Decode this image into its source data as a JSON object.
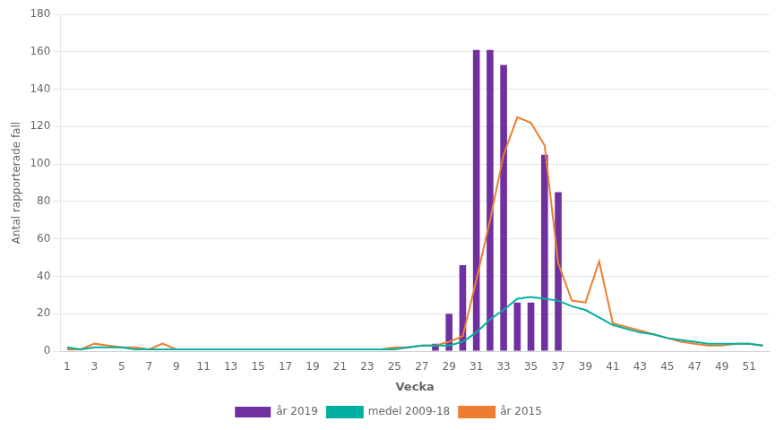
{
  "chart_data": {
    "type": "bar",
    "xlabel": "Vecka",
    "ylabel": "Antal rapporterade fall",
    "categories": [
      "1",
      null,
      "3",
      null,
      "5",
      null,
      "7",
      null,
      "9",
      null,
      "11",
      null,
      "13",
      null,
      "15",
      null,
      "17",
      null,
      "19",
      null,
      "21",
      null,
      "23",
      null,
      "25",
      null,
      "27",
      null,
      "29",
      null,
      "31",
      null,
      "33",
      null,
      "35",
      null,
      "37",
      null,
      "39",
      null,
      "41",
      null,
      "43",
      null,
      "45",
      null,
      "47",
      null,
      "49",
      null,
      "51",
      null
    ],
    "series": [
      {
        "name": "år 2019",
        "type": "bar",
        "color": "#7030a0",
        "values": [
          null,
          null,
          null,
          null,
          null,
          null,
          null,
          null,
          null,
          null,
          null,
          null,
          null,
          null,
          null,
          null,
          null,
          null,
          null,
          null,
          null,
          null,
          null,
          null,
          null,
          null,
          null,
          4,
          20,
          46,
          161,
          161,
          153,
          26,
          26,
          105,
          85,
          null,
          null,
          null,
          null,
          null,
          null,
          null,
          null,
          null,
          null,
          null,
          null,
          null,
          null,
          null
        ]
      },
      {
        "name": "medel 2009-18",
        "type": "line",
        "color": "#00b0a0",
        "values": [
          2,
          1,
          2,
          2,
          2,
          1,
          1,
          1,
          1,
          1,
          1,
          1,
          1,
          1,
          1,
          1,
          1,
          1,
          1,
          1,
          1,
          1,
          1,
          1,
          1,
          2,
          3,
          3,
          3,
          5,
          10,
          17,
          22,
          28,
          29,
          28,
          27,
          24,
          22,
          18,
          14,
          12,
          10,
          9,
          7,
          6,
          5,
          4,
          4,
          4,
          4,
          3
        ]
      },
      {
        "name": "år 2015",
        "type": "line",
        "color": "#ed7d31",
        "values": [
          1,
          1,
          4,
          3,
          2,
          2,
          1,
          4,
          1,
          1,
          1,
          1,
          1,
          1,
          1,
          1,
          1,
          1,
          1,
          1,
          1,
          1,
          1,
          1,
          2,
          2,
          3,
          3,
          5,
          8,
          38,
          70,
          105,
          125,
          122,
          110,
          47,
          27,
          26,
          48,
          15,
          13,
          11,
          9,
          7,
          5,
          4,
          3,
          3,
          4,
          4,
          3
        ]
      }
    ],
    "ylim": [
      0,
      180
    ],
    "yticks": [
      0,
      20,
      40,
      60,
      80,
      100,
      120,
      140,
      160,
      180
    ],
    "grid": "y",
    "legend": "bottom"
  }
}
